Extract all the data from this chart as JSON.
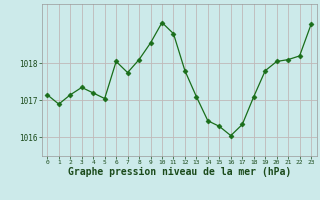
{
  "x": [
    0,
    1,
    2,
    3,
    4,
    5,
    6,
    7,
    8,
    9,
    10,
    11,
    12,
    13,
    14,
    15,
    16,
    17,
    18,
    19,
    20,
    21,
    22,
    23
  ],
  "y": [
    1017.15,
    1016.9,
    1017.15,
    1017.35,
    1017.2,
    1017.05,
    1018.05,
    1017.75,
    1018.1,
    1018.55,
    1019.1,
    1018.8,
    1017.8,
    1017.1,
    1016.45,
    1016.3,
    1016.05,
    1016.35,
    1017.1,
    1017.8,
    1018.05,
    1018.1,
    1018.2,
    1019.05
  ],
  "line_color": "#1a6e1a",
  "marker": "D",
  "marker_size": 2.5,
  "background_color": "#cceaea",
  "grid_color": "#c0b8b8",
  "xlabel": "Graphe pression niveau de la mer (hPa)",
  "xlabel_fontsize": 7,
  "xlabel_color": "#1a4a1a",
  "tick_color": "#1a4a1a",
  "yticks": [
    1016,
    1017,
    1018
  ],
  "ylim": [
    1015.5,
    1019.6
  ],
  "xlim": [
    -0.5,
    23.5
  ],
  "xticks": [
    0,
    1,
    2,
    3,
    4,
    5,
    6,
    7,
    8,
    9,
    10,
    11,
    12,
    13,
    14,
    15,
    16,
    17,
    18,
    19,
    20,
    21,
    22,
    23
  ]
}
